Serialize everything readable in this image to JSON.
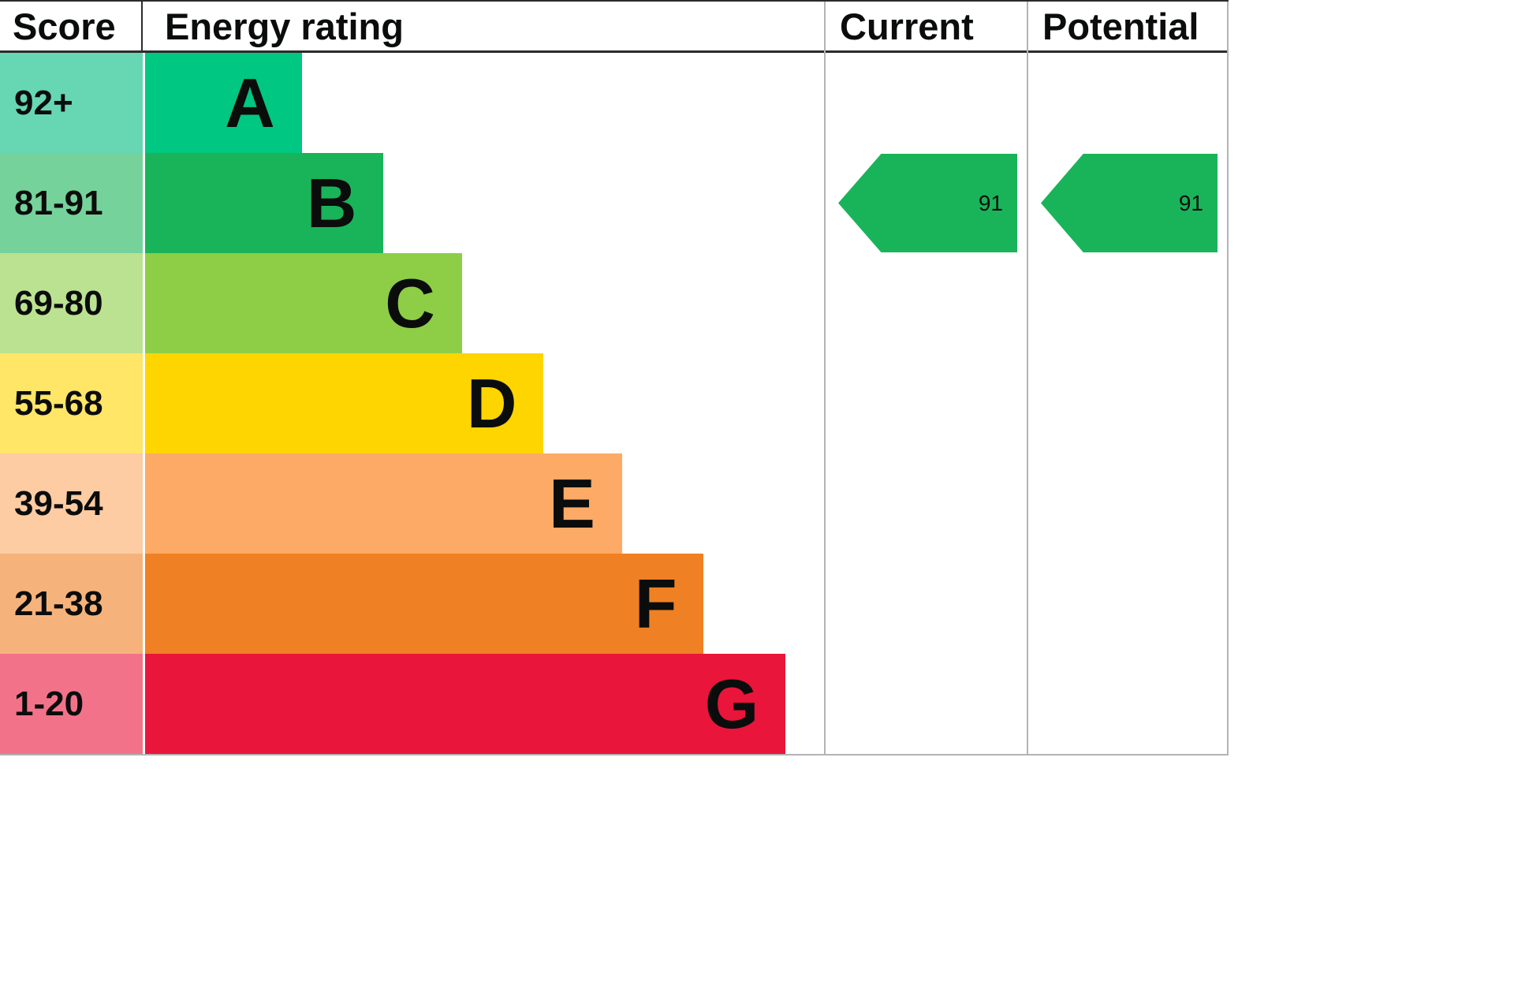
{
  "chart_data": {
    "type": "bar",
    "orientation": "horizontal",
    "title": "Energy rating",
    "categories": [
      "A",
      "B",
      "C",
      "D",
      "E",
      "F",
      "G"
    ],
    "score_ranges": [
      "92+",
      "81-91",
      "69-80",
      "55-68",
      "39-54",
      "21-38",
      "1-20"
    ],
    "bar_widths_pct": [
      23,
      35,
      46.5,
      58.5,
      70,
      82,
      94
    ],
    "band_colors": [
      "#00c781",
      "#19b459",
      "#8dce46",
      "#ffd500",
      "#fcaa65",
      "#ef8023",
      "#e9153b"
    ],
    "current_rating": 91,
    "current_band": "B",
    "potential_rating": 91,
    "potential_band": "B",
    "legend_position": "none",
    "grid": false
  },
  "header": {
    "score": "Score",
    "energy_rating": "Energy rating",
    "current": "Current",
    "potential": "Potential"
  },
  "bands": [
    {
      "score": "92+",
      "letter": "A",
      "color": "#00c781",
      "score_color": "#66d6b3",
      "width_pct": 23
    },
    {
      "score": "81-91",
      "letter": "B",
      "color": "#19b459",
      "score_color": "#75d29b",
      "width_pct": 35
    },
    {
      "score": "69-80",
      "letter": "C",
      "color": "#8dce46",
      "score_color": "#bbe290",
      "width_pct": 46.5
    },
    {
      "score": "55-68",
      "letter": "D",
      "color": "#ffd500",
      "score_color": "#ffe666",
      "width_pct": 58.5
    },
    {
      "score": "39-54",
      "letter": "E",
      "color": "#fcaa65",
      "score_color": "#fdcca3",
      "width_pct": 70
    },
    {
      "score": "21-38",
      "letter": "F",
      "color": "#ef8023",
      "score_color": "#f5b37b",
      "width_pct": 82
    },
    {
      "score": "1-20",
      "letter": "G",
      "color": "#e9153b",
      "score_color": "#f27389",
      "width_pct": 94
    }
  ],
  "current": {
    "value": "91",
    "band_index": 1,
    "arrow_color": "#19b459"
  },
  "potential": {
    "value": "91",
    "band_index": 1,
    "arrow_color": "#19b459"
  }
}
